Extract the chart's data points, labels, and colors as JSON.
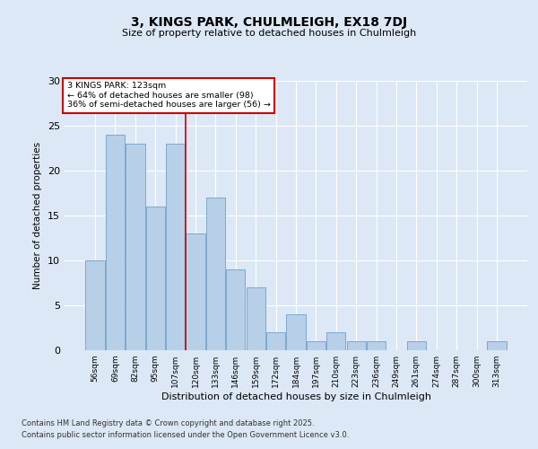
{
  "title1": "3, KINGS PARK, CHULMLEIGH, EX18 7DJ",
  "title2": "Size of property relative to detached houses in Chulmleigh",
  "xlabel": "Distribution of detached houses by size in Chulmleigh",
  "ylabel": "Number of detached properties",
  "categories": [
    "56sqm",
    "69sqm",
    "82sqm",
    "95sqm",
    "107sqm",
    "120sqm",
    "133sqm",
    "146sqm",
    "159sqm",
    "172sqm",
    "184sqm",
    "197sqm",
    "210sqm",
    "223sqm",
    "236sqm",
    "249sqm",
    "261sqm",
    "274sqm",
    "287sqm",
    "300sqm",
    "313sqm"
  ],
  "values": [
    10,
    24,
    23,
    16,
    23,
    13,
    17,
    9,
    7,
    2,
    4,
    1,
    2,
    1,
    1,
    0,
    1,
    0,
    0,
    0,
    1
  ],
  "bar_color": "#b8cfe8",
  "bar_edge_color": "#7aaad0",
  "background_color": "#dce8f5",
  "grid_color": "#ffffff",
  "redline_index": 5,
  "annotation_title": "3 KINGS PARK: 123sqm",
  "annotation_line1": "← 64% of detached houses are smaller (98)",
  "annotation_line2": "36% of semi-detached houses are larger (56) →",
  "annotation_box_color": "#ffffff",
  "annotation_box_edge": "#cc0000",
  "redline_color": "#cc0000",
  "ylim": [
    0,
    30
  ],
  "yticks": [
    0,
    5,
    10,
    15,
    20,
    25,
    30
  ],
  "footnote1": "Contains HM Land Registry data © Crown copyright and database right 2025.",
  "footnote2": "Contains public sector information licensed under the Open Government Licence v3.0."
}
